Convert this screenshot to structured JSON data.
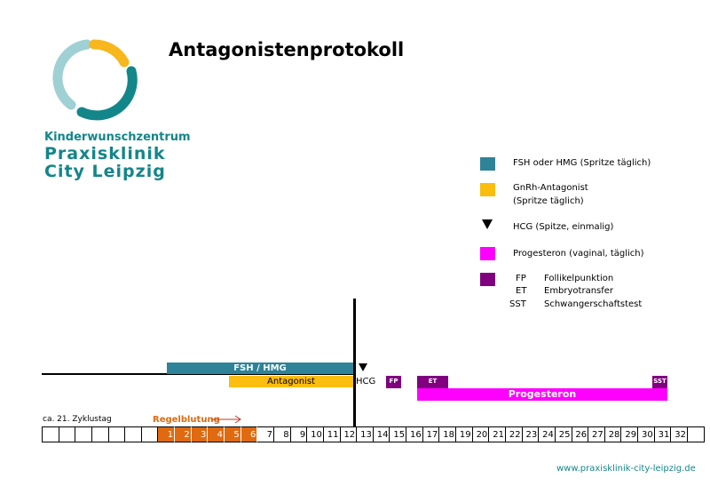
{
  "title": "Antagonistenprotokoll",
  "logo": {
    "line1": "Kinderwunschzentrum",
    "line2": "Praxisklinik",
    "line3": "City Leipzig"
  },
  "legend": [
    {
      "color": "#2e8398",
      "label": "FSH oder HMG (Spritze täglich)"
    },
    {
      "color": "#fbbd0e",
      "label": "GnRh-Antagonist",
      "label2": "(Spritze täglich)"
    },
    {
      "icon": "triangle-down",
      "label": "HCG (Spitze, einmalig)"
    },
    {
      "color": "#ff00ff",
      "label": "Progesteron (vaginal, täglich)"
    },
    {
      "color": "#800080",
      "abbr": [
        {
          "k": "FP",
          "v": "Follikelpunktion"
        },
        {
          "k": "ET",
          "v": "Embryotransfer"
        },
        {
          "k": "SST",
          "v": "Schwangerschaftstest"
        }
      ]
    }
  ],
  "bars": {
    "fsh": "FSH / HMG",
    "antagonist": "Antagonist",
    "hcg": "HCG",
    "fp": "FP",
    "et": "ET",
    "sst": "SST",
    "progesteron": "Progesteron"
  },
  "timeline": {
    "start_label": "ca. 21. Zyklustag",
    "period_label": "Regelblutung",
    "period_days": [
      1,
      2,
      3,
      4,
      5,
      6
    ],
    "days": [
      1,
      2,
      3,
      4,
      5,
      6,
      7,
      8,
      9,
      10,
      11,
      12,
      13,
      14,
      15,
      16,
      17,
      18,
      19,
      20,
      21,
      22,
      23,
      24,
      25,
      26,
      27,
      28,
      29,
      30,
      31,
      32
    ],
    "leading_empty": 7,
    "trailing_empty": 1
  },
  "footer": "www.praxisklinik-city-leipzig.de"
}
